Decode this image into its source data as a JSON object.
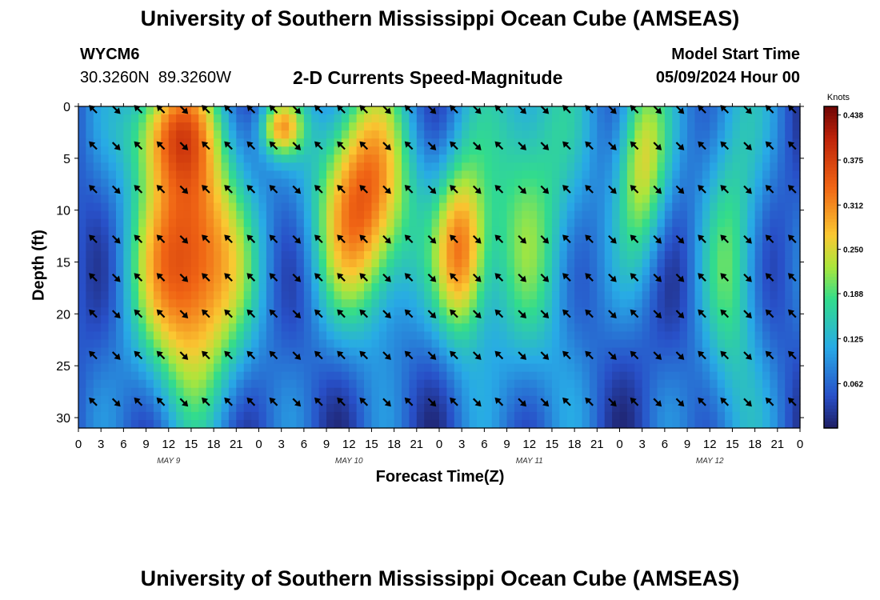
{
  "title": "University of Southern Mississippi Ocean Cube (AMSEAS)",
  "footer_title": "University of Southern Mississippi Ocean Cube (AMSEAS)",
  "station": {
    "id": "WYCM6",
    "lat": "30.3260N",
    "lon": "89.3260W"
  },
  "model_start": {
    "label": "Model Start Time",
    "value": "05/09/2024 Hour 00"
  },
  "chart_data": {
    "type": "heatmap",
    "title": "2-D Currents Speed-Magnitude",
    "xlabel": "Forecast Time(Z)",
    "ylabel": "Depth (ft)",
    "x_range": [
      0,
      96
    ],
    "y_range": [
      0,
      31
    ],
    "y_inverted": true,
    "x_ticks": [
      0,
      3,
      6,
      9,
      12,
      15,
      18,
      21,
      24,
      27,
      30,
      33,
      36,
      39,
      42,
      45,
      48,
      51,
      54,
      57,
      60,
      63,
      66,
      69,
      72,
      75,
      78,
      81,
      84,
      87,
      90,
      93,
      96
    ],
    "x_tick_labels": [
      "0",
      "3",
      "6",
      "9",
      "12",
      "15",
      "18",
      "21",
      "0",
      "3",
      "6",
      "9",
      "12",
      "15",
      "18",
      "21",
      "0",
      "3",
      "6",
      "9",
      "12",
      "15",
      "18",
      "21",
      "0",
      "3",
      "6",
      "9",
      "12",
      "15",
      "18",
      "21",
      "0"
    ],
    "y_ticks": [
      0,
      5,
      10,
      15,
      20,
      25,
      30
    ],
    "y_tick_labels": [
      "0",
      "5",
      "10",
      "15",
      "20",
      "25",
      "30"
    ],
    "day_labels": [
      {
        "x": 12,
        "label": "MAY 9"
      },
      {
        "x": 36,
        "label": "MAY 10"
      },
      {
        "x": 60,
        "label": "MAY 11"
      },
      {
        "x": 84,
        "label": "MAY 12"
      }
    ],
    "colorbar": {
      "label": "Knots",
      "min": 0,
      "max": 0.45,
      "ticks": [
        0.062,
        0.125,
        0.188,
        0.25,
        0.312,
        0.375,
        0.438
      ],
      "tick_labels": [
        "0.062",
        "0.125",
        "0.188",
        "0.250",
        "0.312",
        "0.375",
        "0.438"
      ]
    },
    "speed_features": [
      {
        "t": 15,
        "d": 15,
        "st": 5,
        "sd": 9,
        "a": 0.34
      },
      {
        "t": 12,
        "d": 2,
        "st": 4,
        "sd": 4,
        "a": 0.2
      },
      {
        "t": 27,
        "d": 2,
        "st": 2,
        "sd": 2,
        "a": 0.2
      },
      {
        "t": 38,
        "d": 9,
        "st": 4.5,
        "sd": 8,
        "a": 0.3
      },
      {
        "t": 51,
        "d": 14,
        "st": 2.5,
        "sd": 6,
        "a": 0.26
      },
      {
        "t": 60,
        "d": 8,
        "st": 5,
        "sd": 14,
        "a": 0.14
      },
      {
        "t": 75,
        "d": 5,
        "st": 2.5,
        "sd": 7,
        "a": 0.2
      },
      {
        "t": 87,
        "d": 14,
        "st": 3,
        "sd": 18,
        "a": 0.12
      }
    ],
    "arrow_times": [
      2,
      5,
      8,
      11,
      14,
      17,
      20,
      23,
      26,
      29,
      32,
      35,
      38,
      41,
      44,
      47,
      50,
      53,
      56,
      59,
      62,
      65,
      68,
      71,
      74,
      77,
      80,
      83,
      86,
      89,
      92,
      95
    ],
    "arrow_depths": [
      0.3,
      3.8,
      8,
      12.8,
      16.5,
      20,
      24,
      28.5
    ],
    "arrow_directions_deg": [
      225,
      45,
      225,
      225,
      45,
      225,
      225,
      225,
      225,
      45,
      225,
      225,
      225,
      45,
      225,
      45,
      225,
      45,
      225,
      45,
      45,
      225,
      225,
      45,
      225,
      45,
      45,
      225,
      225,
      45,
      225,
      225
    ]
  }
}
